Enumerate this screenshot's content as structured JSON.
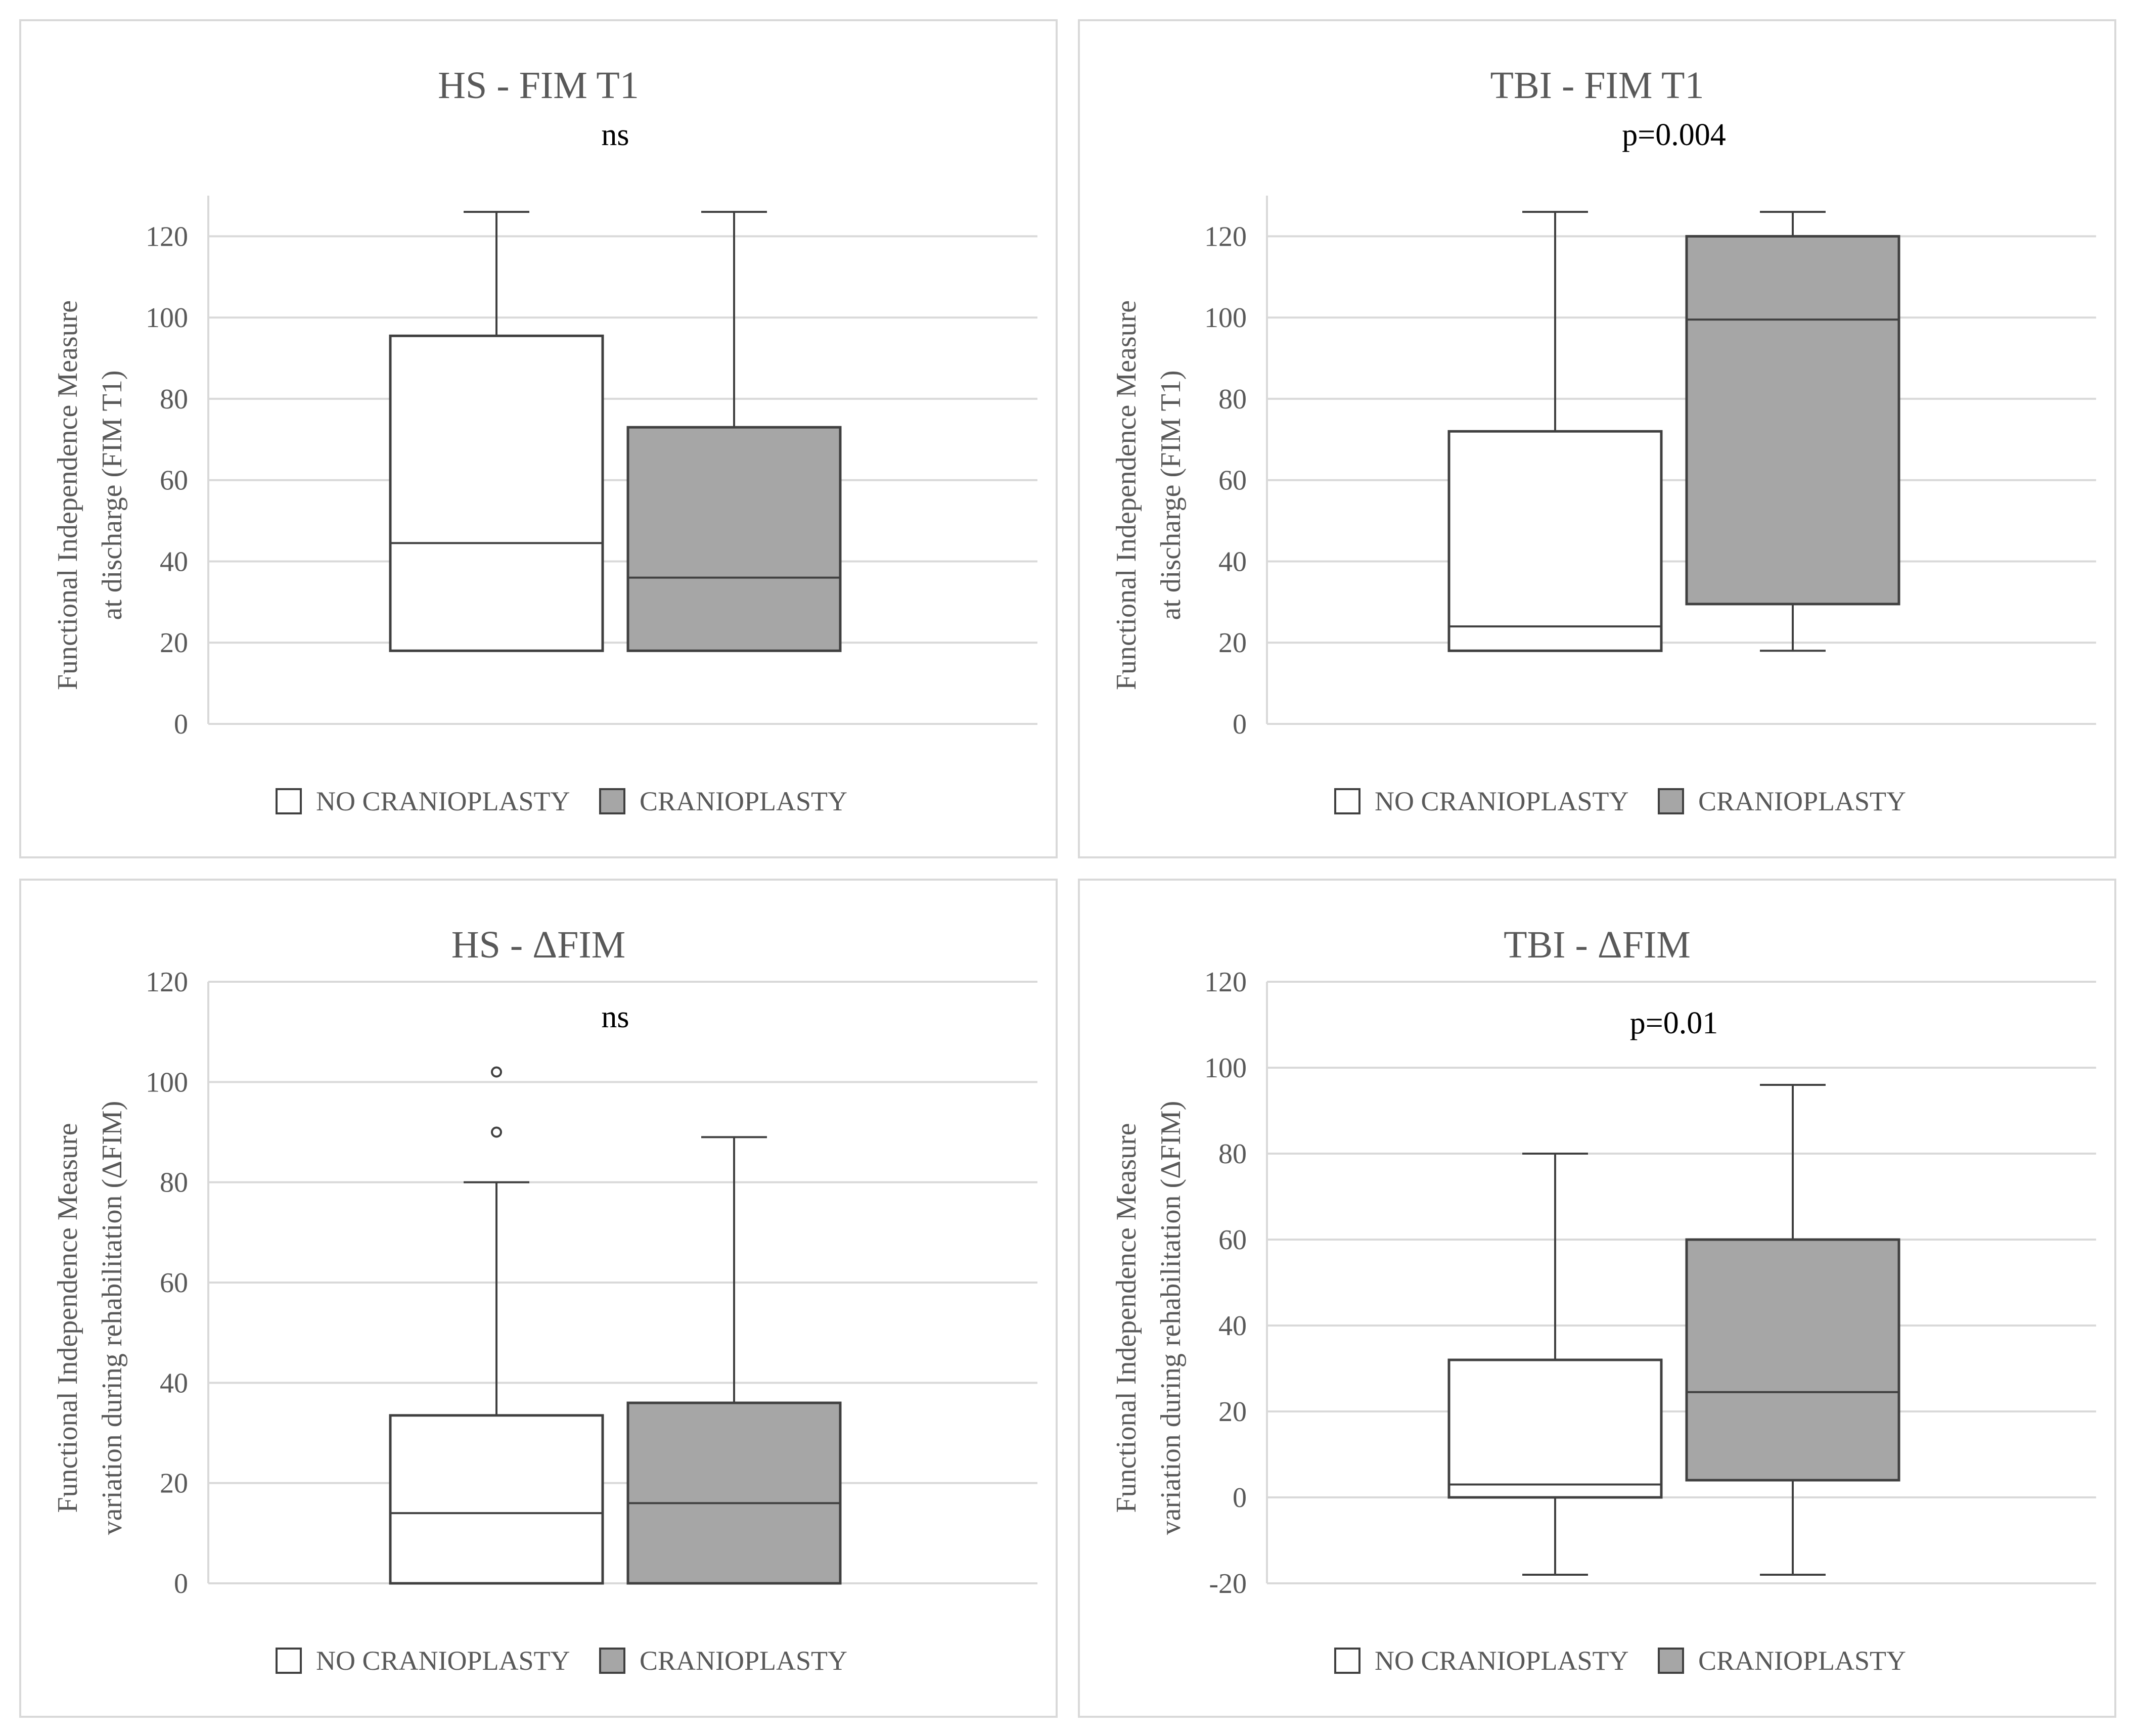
{
  "colors": {
    "no_cranioplasty": "#ffffff",
    "cranioplasty": "#a6a6a6",
    "stroke": "#404040",
    "grid": "#d9d9d9"
  },
  "chart_data": [
    {
      "type": "box",
      "title": "HS - FIM T1",
      "ylabel_lines": [
        "Functional Independence Measure",
        "at discharge (FIM T1)"
      ],
      "ylim": [
        0,
        130
      ],
      "yticks": [
        0,
        20,
        40,
        60,
        80,
        100,
        120
      ],
      "annotation": "ns",
      "legend": [
        "NO CRANIOPLASTY",
        "CRANIOPLASTY"
      ],
      "series": [
        {
          "name": "NO CRANIOPLASTY",
          "whisker_low": 18,
          "q1": 18,
          "median": 44.5,
          "q3": 95.5,
          "whisker_high": 126,
          "outliers": []
        },
        {
          "name": "CRANIOPLASTY",
          "whisker_low": 18,
          "q1": 18,
          "median": 36,
          "q3": 73,
          "whisker_high": 126,
          "outliers": []
        }
      ]
    },
    {
      "type": "box",
      "title": "TBI - FIM T1",
      "ylabel_lines": [
        "Functional Independence Measure",
        "at discharge (FIM T1)"
      ],
      "ylim": [
        0,
        130
      ],
      "yticks": [
        0,
        20,
        40,
        60,
        80,
        100,
        120
      ],
      "annotation": "p=0.004",
      "legend": [
        "NO CRANIOPLASTY",
        "CRANIOPLASTY"
      ],
      "series": [
        {
          "name": "NO CRANIOPLASTY",
          "whisker_low": 18,
          "q1": 18,
          "median": 24,
          "q3": 72,
          "whisker_high": 126,
          "outliers": []
        },
        {
          "name": "CRANIOPLASTY",
          "whisker_low": 18,
          "q1": 29.5,
          "median": 99.5,
          "q3": 120,
          "whisker_high": 126,
          "outliers": []
        }
      ]
    },
    {
      "type": "box",
      "title": "HS - ΔFIM",
      "ylabel_lines": [
        "Functional Independence Measure",
        "variation during rehabilitation (ΔFIM)"
      ],
      "ylim": [
        0,
        120
      ],
      "yticks": [
        0,
        20,
        40,
        60,
        80,
        100,
        120
      ],
      "annotation": "ns",
      "legend": [
        "NO CRANIOPLASTY",
        "CRANIOPLASTY"
      ],
      "series": [
        {
          "name": "NO CRANIOPLASTY",
          "whisker_low": 0,
          "q1": 0,
          "median": 14,
          "q3": 33.5,
          "whisker_high": 80,
          "outliers": [
            90,
            102
          ]
        },
        {
          "name": "CRANIOPLASTY",
          "whisker_low": 0,
          "q1": 0,
          "median": 16,
          "q3": 36,
          "whisker_high": 89,
          "outliers": []
        }
      ]
    },
    {
      "type": "box",
      "title": "TBI - ΔFIM",
      "ylabel_lines": [
        "Functional Independence Measure",
        "variation during rehabilitation (ΔFIM)"
      ],
      "ylim": [
        -20,
        120
      ],
      "yticks": [
        -20,
        0,
        20,
        40,
        60,
        80,
        100,
        120
      ],
      "annotation": "p=0.01",
      "legend": [
        "NO CRANIOPLASTY",
        "CRANIOPLASTY"
      ],
      "series": [
        {
          "name": "NO CRANIOPLASTY",
          "whisker_low": -18,
          "q1": 0,
          "median": 3,
          "q3": 32,
          "whisker_high": 80,
          "outliers": []
        },
        {
          "name": "CRANIOPLASTY",
          "whisker_low": -18,
          "q1": 4,
          "median": 24.5,
          "q3": 60,
          "whisker_high": 96,
          "outliers": []
        }
      ]
    }
  ]
}
